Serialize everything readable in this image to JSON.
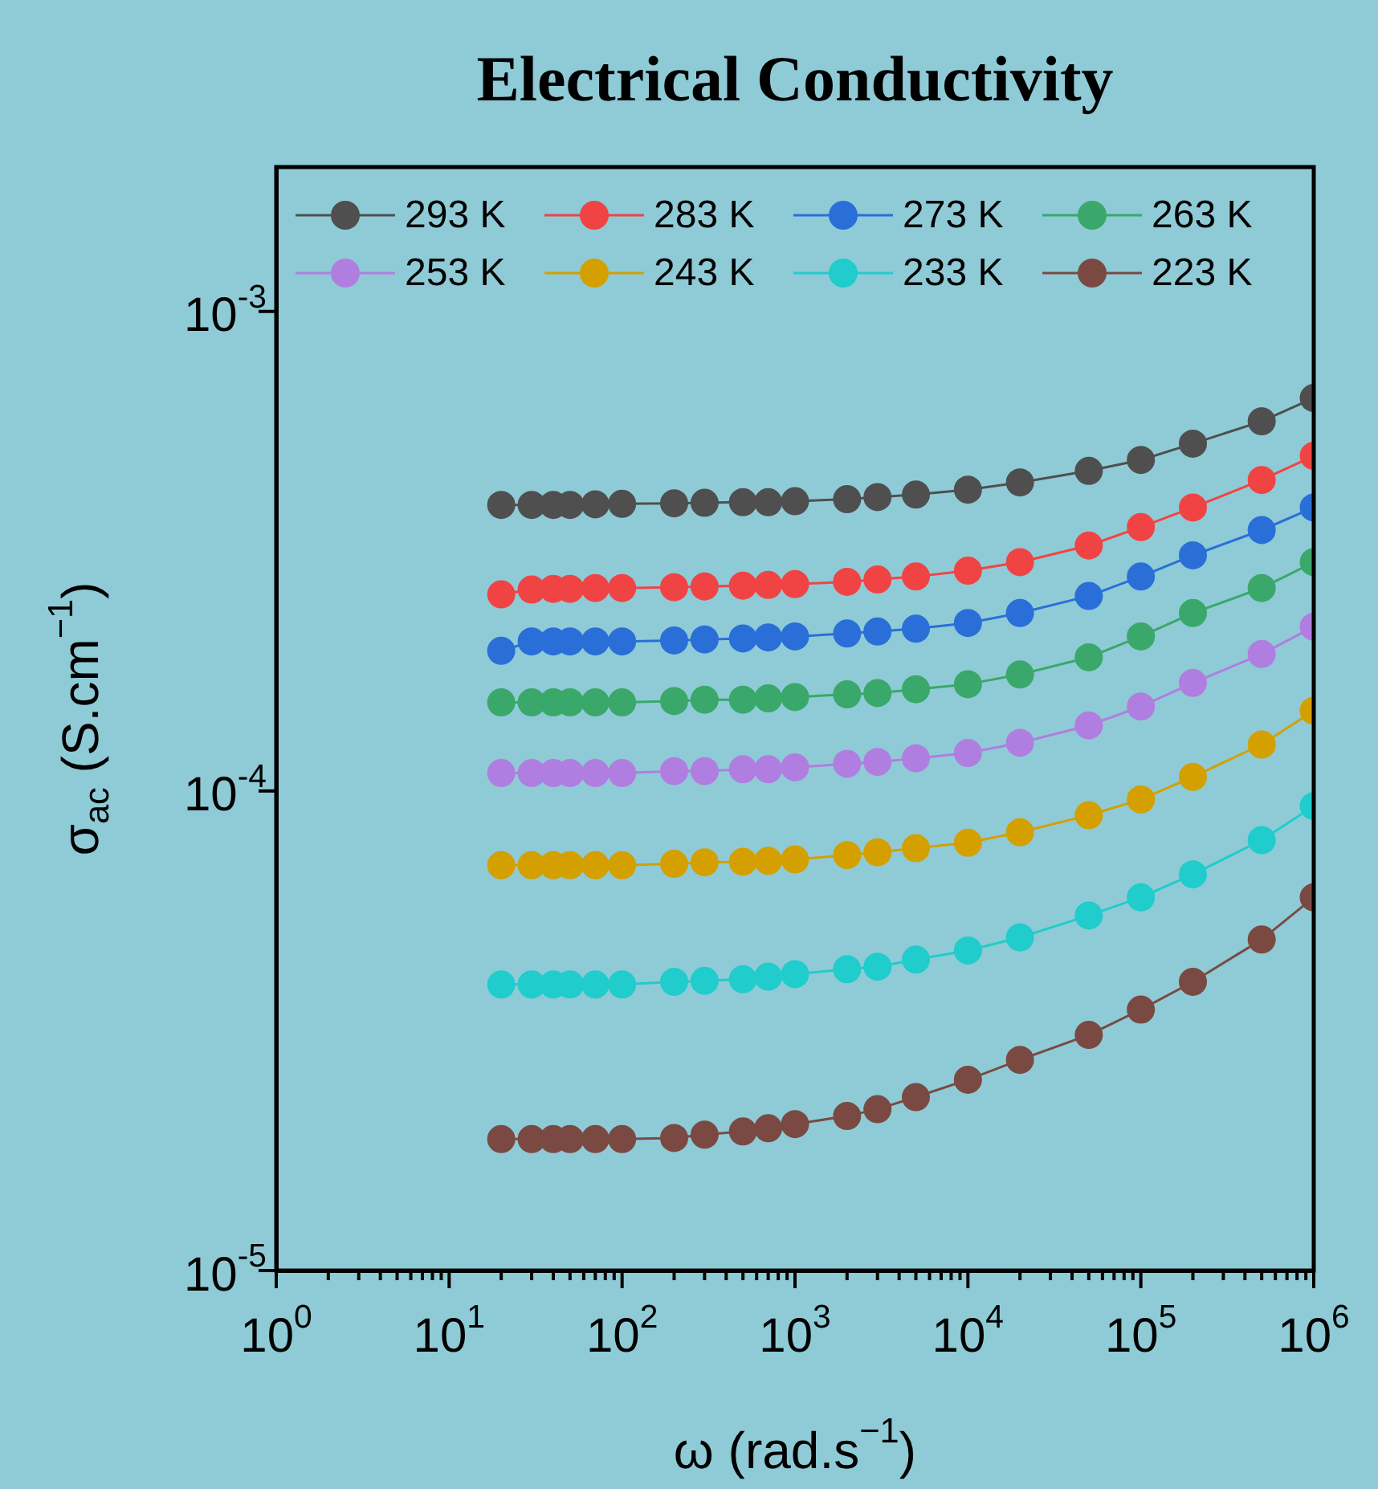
{
  "chart_data": {
    "type": "line",
    "title": "Electrical Conductivity",
    "xlabel": "ω (rad.s$^{−1}$)",
    "ylabel": "σ$_{ac}$ (S.cm$^{−1}$)",
    "log": "xy",
    "marker": "circle",
    "legend": "top left",
    "xlim": [
      1,
      1000000
    ],
    "ylim": [
      1e-05,
      0.002
    ],
    "xticks": [
      {
        "value": 1,
        "label": "10$^{0}$"
      },
      {
        "value": 2,
        "label": null
      },
      {
        "value": 3,
        "label": null
      },
      {
        "value": 4,
        "label": null
      },
      {
        "value": 5,
        "label": null
      },
      {
        "value": 6,
        "label": null
      },
      {
        "value": 7,
        "label": null
      },
      {
        "value": 8,
        "label": null
      },
      {
        "value": 9,
        "label": null
      },
      {
        "value": 10,
        "label": "10$^{1}$"
      },
      {
        "value": 20,
        "label": null
      },
      {
        "value": 30,
        "label": null
      },
      {
        "value": 40,
        "label": null
      },
      {
        "value": 50,
        "label": null
      },
      {
        "value": 60,
        "label": null
      },
      {
        "value": 70,
        "label": null
      },
      {
        "value": 80,
        "label": null
      },
      {
        "value": 90,
        "label": null
      },
      {
        "value": 100,
        "label": "10$^{2}$"
      },
      {
        "value": 200,
        "label": null
      },
      {
        "value": 300,
        "label": null
      },
      {
        "value": 400,
        "label": null
      },
      {
        "value": 500,
        "label": null
      },
      {
        "value": 600,
        "label": null
      },
      {
        "value": 700,
        "label": null
      },
      {
        "value": 800,
        "label": null
      },
      {
        "value": 900,
        "label": null
      },
      {
        "value": 1000,
        "label": "10$^{3}$"
      },
      {
        "value": 2000,
        "label": null
      },
      {
        "value": 3000,
        "label": null
      },
      {
        "value": 4000,
        "label": null
      },
      {
        "value": 5000,
        "label": null
      },
      {
        "value": 6000,
        "label": null
      },
      {
        "value": 7000,
        "label": null
      },
      {
        "value": 8000,
        "label": null
      },
      {
        "value": 9000,
        "label": null
      },
      {
        "value": 10000,
        "label": "10$^{4}$"
      },
      {
        "value": 20000,
        "label": null
      },
      {
        "value": 30000,
        "label": null
      },
      {
        "value": 40000,
        "label": null
      },
      {
        "value": 50000,
        "label": null
      },
      {
        "value": 60000,
        "label": null
      },
      {
        "value": 70000,
        "label": null
      },
      {
        "value": 80000,
        "label": null
      },
      {
        "value": 90000,
        "label": null
      },
      {
        "value": 100000,
        "label": "10$^{5}$"
      },
      {
        "value": 200000,
        "label": null
      },
      {
        "value": 300000,
        "label": null
      },
      {
        "value": 400000,
        "label": null
      },
      {
        "value": 500000,
        "label": null
      },
      {
        "value": 600000,
        "label": null
      },
      {
        "value": 700000,
        "label": null
      },
      {
        "value": 800000,
        "label": null
      },
      {
        "value": 900000,
        "label": null
      },
      {
        "value": 1000000,
        "label": "10$^{6}$"
      }
    ],
    "yticks": [
      {
        "value": 1e-05,
        "label": "10$^{-5}$"
      },
      {
        "value": 0.0001,
        "label": "10$^{-4}$"
      },
      {
        "value": 0.001,
        "label": "10$^{-3}$"
      }
    ],
    "x": [
      20,
      30,
      40,
      50,
      70,
      100,
      200,
      300,
      500,
      700,
      1000,
      2000,
      3000,
      5000,
      10000,
      20000,
      50000,
      100000,
      200000,
      500000,
      1000000
    ],
    "series": [
      {
        "name": "293 K",
        "color": "#4f4f4f",
        "values": [
          0.000395,
          0.000395,
          0.000395,
          0.000395,
          0.000396,
          0.000397,
          0.000398,
          0.000399,
          0.0004,
          0.0004,
          0.000402,
          0.000406,
          0.00041,
          0.000415,
          0.000425,
          0.00044,
          0.000465,
          0.00049,
          0.00053,
          0.00059,
          0.00066
        ]
      },
      {
        "name": "283 K",
        "color": "#f04444",
        "values": [
          0.000257,
          0.000263,
          0.000264,
          0.000264,
          0.000265,
          0.000265,
          0.000266,
          0.000267,
          0.000268,
          0.000269,
          0.00027,
          0.000273,
          0.000276,
          0.00028,
          0.000288,
          0.0003,
          0.000325,
          0.000355,
          0.00039,
          0.000445,
          0.0005
        ]
      },
      {
        "name": "273 K",
        "color": "#2a6fd8",
        "values": [
          0.000196,
          0.000205,
          0.000205,
          0.000205,
          0.000205,
          0.000205,
          0.000206,
          0.000207,
          0.000208,
          0.000209,
          0.00021,
          0.000213,
          0.000215,
          0.000218,
          0.000224,
          0.000235,
          0.000255,
          0.00028,
          0.00031,
          0.00035,
          0.00039
        ]
      },
      {
        "name": "263 K",
        "color": "#3aa86a",
        "values": [
          0.000153,
          0.000153,
          0.000153,
          0.000153,
          0.000153,
          0.000153,
          0.000154,
          0.000155,
          0.000155,
          0.000156,
          0.000157,
          0.000159,
          0.00016,
          0.000163,
          0.000167,
          0.000175,
          0.00019,
          0.00021,
          0.000235,
          0.000265,
          0.0003
        ]
      },
      {
        "name": "253 K",
        "color": "#b07ee0",
        "values": [
          0.000109,
          0.000109,
          0.000109,
          0.000109,
          0.000109,
          0.000109,
          0.00011,
          0.00011,
          0.000111,
          0.000111,
          0.000112,
          0.000114,
          0.000115,
          0.000117,
          0.00012,
          0.000126,
          0.000137,
          0.00015,
          0.000168,
          0.000193,
          0.00022
        ]
      },
      {
        "name": "243 K",
        "color": "#d4a000",
        "values": [
          7e-05,
          7e-05,
          7e-05,
          7e-05,
          7e-05,
          7e-05,
          7.05e-05,
          7.1e-05,
          7.12e-05,
          7.15e-05,
          7.2e-05,
          7.35e-05,
          7.45e-05,
          7.6e-05,
          7.8e-05,
          8.2e-05,
          8.9e-05,
          9.6e-05,
          0.000107,
          0.000125,
          0.000147
        ]
      },
      {
        "name": "233 K",
        "color": "#20cccc",
        "values": [
          3.95e-05,
          3.95e-05,
          3.95e-05,
          3.95e-05,
          3.95e-05,
          3.95e-05,
          4e-05,
          4.02e-05,
          4.05e-05,
          4.1e-05,
          4.15e-05,
          4.25e-05,
          4.3e-05,
          4.45e-05,
          4.65e-05,
          4.95e-05,
          5.5e-05,
          6e-05,
          6.7e-05,
          7.9e-05,
          9.3e-05
        ]
      },
      {
        "name": "223 K",
        "color": "#7a4a42",
        "values": [
          1.88e-05,
          1.88e-05,
          1.88e-05,
          1.88e-05,
          1.88e-05,
          1.88e-05,
          1.89e-05,
          1.92e-05,
          1.95e-05,
          1.98e-05,
          2.02e-05,
          2.1e-05,
          2.17e-05,
          2.3e-05,
          2.5e-05,
          2.75e-05,
          3.1e-05,
          3.5e-05,
          4e-05,
          4.9e-05,
          6e-05
        ]
      }
    ]
  }
}
